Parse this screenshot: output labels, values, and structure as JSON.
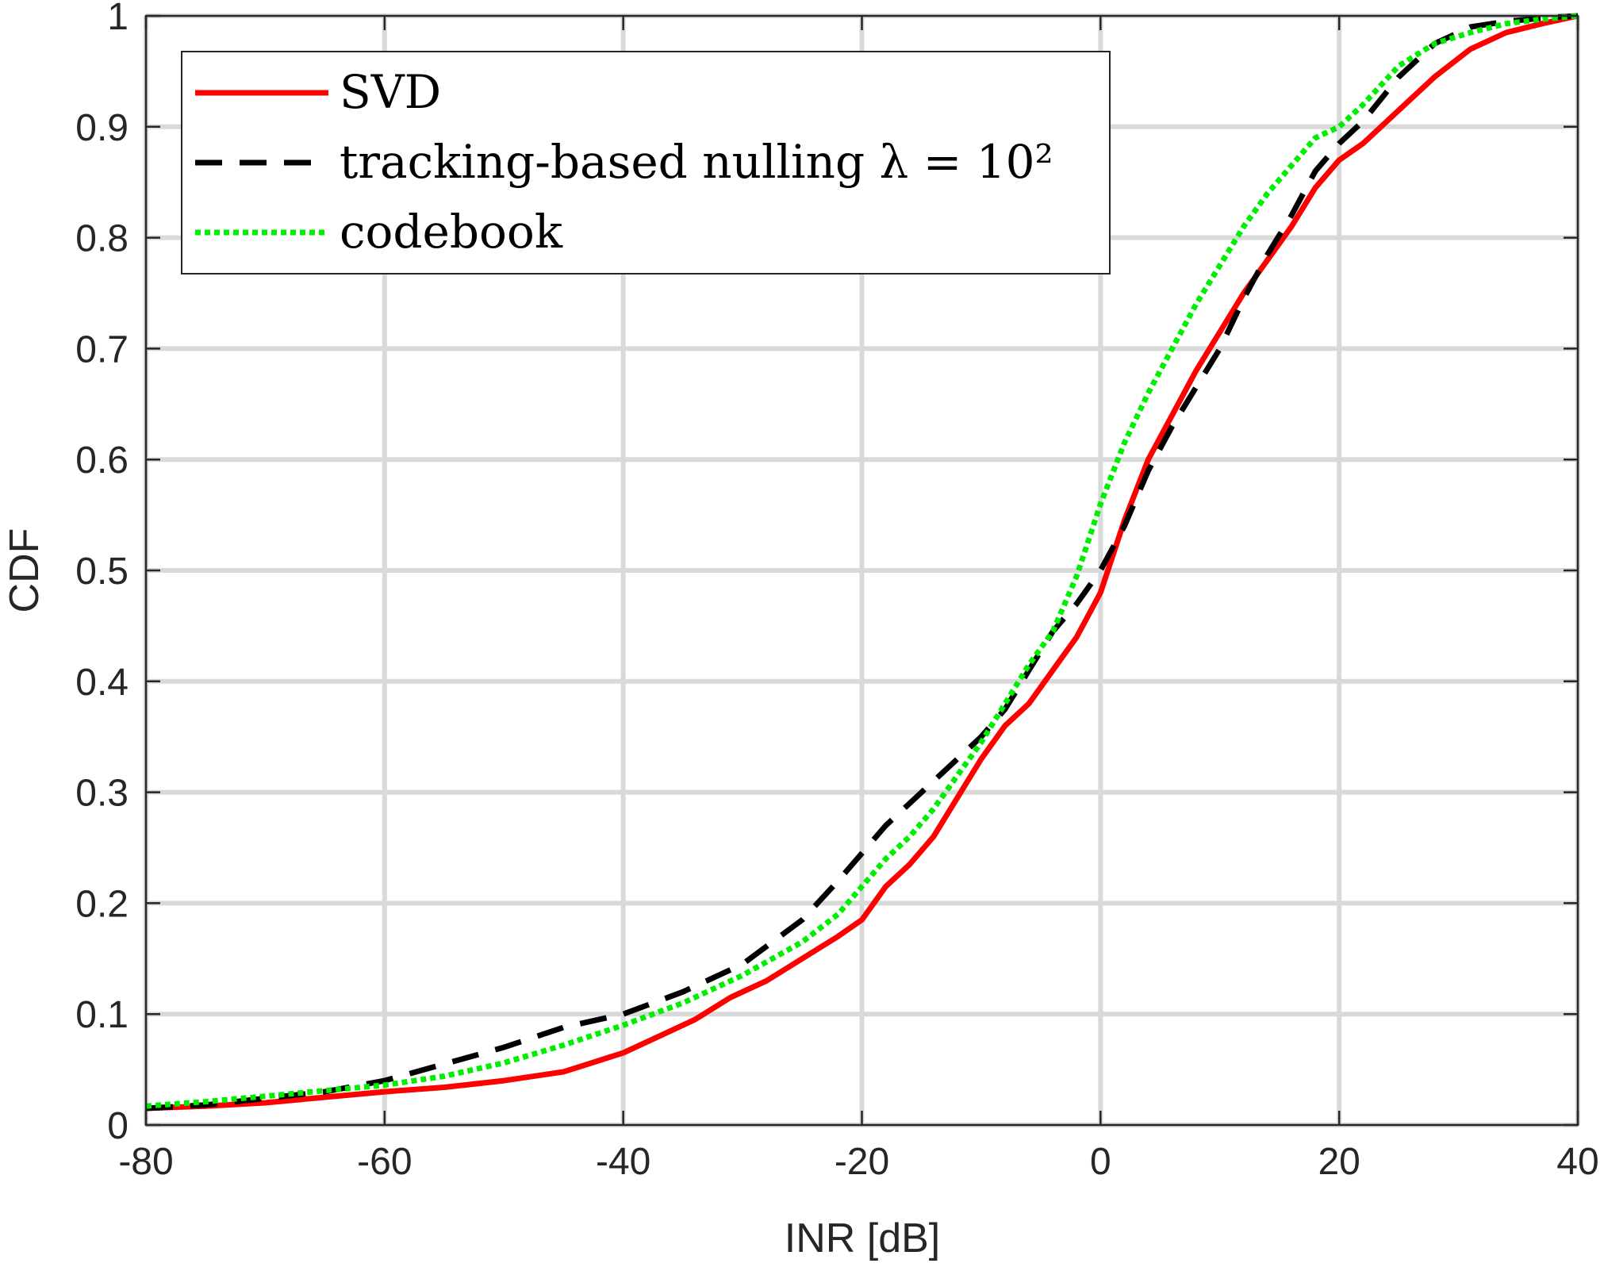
{
  "chart_data": {
    "type": "line",
    "xlabel": "INR [dB]",
    "ylabel": "CDF",
    "xlim": [
      -80,
      40
    ],
    "ylim": [
      0,
      1
    ],
    "xticks": [
      -80,
      -60,
      -40,
      -20,
      0,
      20,
      40
    ],
    "yticks": [
      0,
      0.1,
      0.2,
      0.3,
      0.4,
      0.5,
      0.6,
      0.7,
      0.8,
      0.9,
      1
    ],
    "xtick_labels": [
      "-80",
      "-60",
      "-40",
      "-20",
      "0",
      "20",
      "40"
    ],
    "ytick_labels": [
      "0",
      "0.1",
      "0.2",
      "0.3",
      "0.4",
      "0.5",
      "0.6",
      "0.7",
      "0.8",
      "0.9",
      "1"
    ],
    "grid": true,
    "legend_position": "top-left",
    "series": [
      {
        "name": "SVD",
        "color": "#ff0000",
        "style": "solid",
        "x": [
          -80,
          -75,
          -70,
          -65,
          -60,
          -55,
          -50,
          -45,
          -40,
          -37,
          -34,
          -31,
          -28,
          -25,
          -22,
          -20,
          -18,
          -16,
          -14,
          -12,
          -10,
          -8,
          -6,
          -4,
          -2,
          0,
          2,
          4,
          6,
          8,
          10,
          12,
          14,
          16,
          18,
          20,
          22,
          25,
          28,
          31,
          34,
          37,
          40
        ],
        "y": [
          0.015,
          0.017,
          0.02,
          0.025,
          0.03,
          0.034,
          0.04,
          0.048,
          0.065,
          0.08,
          0.095,
          0.115,
          0.13,
          0.15,
          0.17,
          0.185,
          0.215,
          0.235,
          0.26,
          0.295,
          0.33,
          0.36,
          0.38,
          0.41,
          0.44,
          0.48,
          0.545,
          0.6,
          0.64,
          0.68,
          0.715,
          0.75,
          0.78,
          0.81,
          0.845,
          0.87,
          0.885,
          0.915,
          0.945,
          0.97,
          0.985,
          0.993,
          1.0
        ]
      },
      {
        "name": "tracking-based nulling λ = 10²",
        "color": "#000000",
        "style": "dashed",
        "x": [
          -80,
          -75,
          -70,
          -65,
          -60,
          -55,
          -50,
          -45,
          -40,
          -35,
          -30,
          -25,
          -22,
          -20,
          -18,
          -16,
          -14,
          -12,
          -10,
          -8,
          -6,
          -4,
          -2,
          0,
          2,
          4,
          6,
          8,
          10,
          12,
          14,
          16,
          18,
          20,
          22,
          25,
          28,
          31,
          34,
          37,
          40
        ],
        "y": [
          0.015,
          0.018,
          0.024,
          0.03,
          0.04,
          0.055,
          0.07,
          0.088,
          0.1,
          0.12,
          0.145,
          0.185,
          0.22,
          0.245,
          0.27,
          0.29,
          0.31,
          0.33,
          0.35,
          0.375,
          0.41,
          0.445,
          0.47,
          0.5,
          0.54,
          0.59,
          0.63,
          0.665,
          0.7,
          0.745,
          0.785,
          0.82,
          0.86,
          0.885,
          0.905,
          0.945,
          0.975,
          0.99,
          0.995,
          0.998,
          1.0
        ]
      },
      {
        "name": "codebook",
        "color": "#00ee00",
        "style": "dotted",
        "x": [
          -80,
          -75,
          -70,
          -65,
          -60,
          -55,
          -50,
          -45,
          -40,
          -35,
          -30,
          -25,
          -22,
          -20,
          -18,
          -16,
          -14,
          -12,
          -10,
          -8,
          -6,
          -4,
          -2,
          0,
          2,
          4,
          6,
          8,
          10,
          12,
          14,
          16,
          18,
          20,
          22,
          25,
          28,
          31,
          34,
          37,
          40
        ],
        "y": [
          0.017,
          0.021,
          0.026,
          0.031,
          0.036,
          0.044,
          0.056,
          0.072,
          0.09,
          0.11,
          0.135,
          0.165,
          0.19,
          0.215,
          0.24,
          0.26,
          0.285,
          0.315,
          0.345,
          0.38,
          0.415,
          0.445,
          0.495,
          0.56,
          0.615,
          0.66,
          0.7,
          0.74,
          0.775,
          0.81,
          0.84,
          0.865,
          0.89,
          0.9,
          0.92,
          0.955,
          0.975,
          0.985,
          0.993,
          0.997,
          1.0
        ]
      }
    ]
  }
}
